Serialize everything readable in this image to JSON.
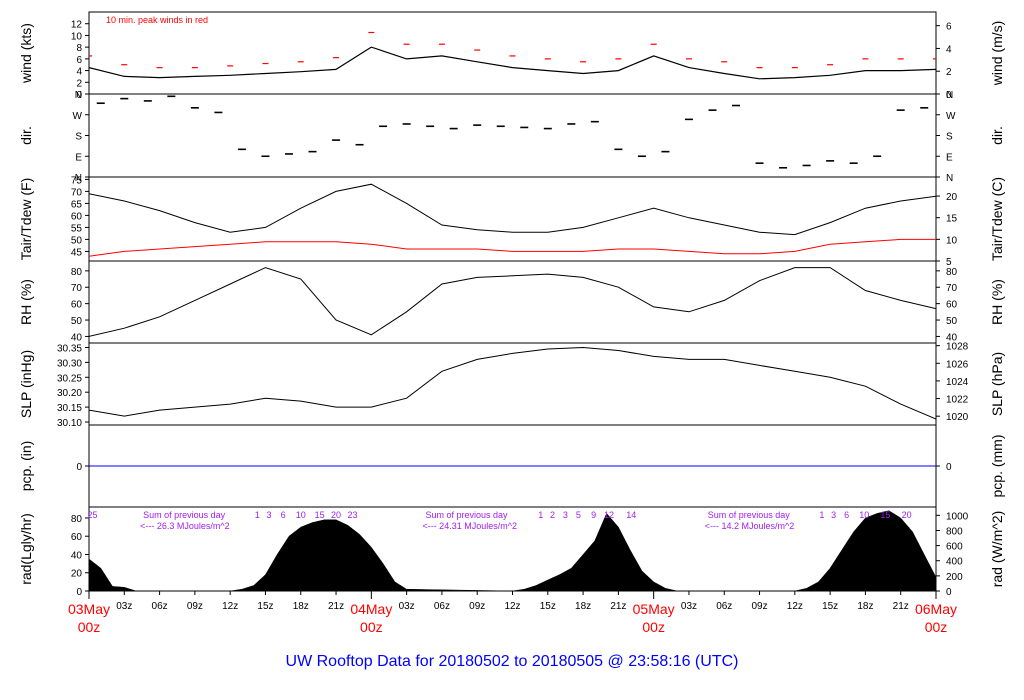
{
  "title": "UW Rooftop Data for 20180502  to  20180505 @ 23:58:16  (UTC)",
  "colors": {
    "wind_peak": "#ff0000",
    "tdew": "#ff0000",
    "pcp": "#0000ff",
    "annotation": "#a020f0",
    "title": "#0000ff",
    "date_label": "#ff0000",
    "line": "#000000"
  },
  "chart_data": [
    {
      "type": "line",
      "panel": "wind",
      "ylabel_left": "wind (kts)",
      "ylabel_right": "wind (m/s)",
      "yticks_left": [
        0,
        2,
        4,
        6,
        8,
        10,
        12
      ],
      "yticks_right": [
        0,
        2,
        4,
        6
      ],
      "annotation": "10 min. peak winds in red",
      "series": [
        {
          "name": "wind",
          "x": [
            0,
            3,
            6,
            9,
            12,
            15,
            18,
            21,
            24,
            27,
            30,
            33,
            36,
            39,
            42,
            45,
            48,
            51,
            54,
            57,
            60,
            63,
            66,
            69,
            72
          ],
          "y": [
            4.5,
            3.0,
            2.8,
            3.0,
            3.2,
            3.5,
            3.8,
            4.2,
            8.0,
            6.0,
            6.5,
            5.5,
            4.5,
            4.0,
            3.5,
            4.0,
            6.5,
            4.5,
            3.5,
            2.6,
            2.8,
            3.2,
            4.0,
            4.0,
            4.2
          ]
        },
        {
          "name": "peak",
          "x": [
            0,
            3,
            6,
            9,
            12,
            15,
            18,
            21,
            24,
            27,
            30,
            33,
            36,
            39,
            42,
            45,
            48,
            51,
            54,
            57,
            60,
            63,
            66,
            69,
            72
          ],
          "y": [
            6.5,
            5.0,
            4.5,
            4.5,
            4.8,
            5.2,
            5.5,
            6.2,
            10.5,
            8.5,
            8.5,
            7.5,
            6.5,
            6.0,
            5.5,
            6.0,
            8.5,
            6.0,
            5.5,
            4.5,
            4.5,
            5.0,
            6.0,
            6.0,
            6.0
          ]
        }
      ]
    },
    {
      "type": "scatter",
      "panel": "dir",
      "ylabel": "dir.",
      "ytick_labels": [
        "N",
        "E",
        "S",
        "W",
        "N"
      ],
      "series": [
        {
          "name": "direction",
          "x": [
            1,
            3,
            5,
            7,
            9,
            11,
            13,
            15,
            17,
            19,
            21,
            23,
            25,
            27,
            29,
            31,
            33,
            35,
            37,
            39,
            41,
            43,
            45,
            47,
            49,
            51,
            53,
            55,
            57,
            59,
            61,
            63,
            65,
            67,
            69,
            71
          ],
          "y": [
            320,
            340,
            330,
            350,
            300,
            280,
            120,
            90,
            100,
            110,
            160,
            140,
            220,
            230,
            220,
            210,
            225,
            220,
            215,
            210,
            230,
            240,
            120,
            90,
            110,
            250,
            290,
            310,
            60,
            40,
            50,
            70,
            60,
            90,
            290,
            300
          ]
        }
      ]
    },
    {
      "type": "line",
      "panel": "temp",
      "ylabel_left": "Tair/Tdew (F)",
      "ylabel_right": "Tair/Tdew (C)",
      "yticks_left": [
        45,
        50,
        55,
        60,
        65,
        70,
        75
      ],
      "yticks_right": [
        5,
        10,
        15,
        20
      ],
      "series": [
        {
          "name": "Tair",
          "x": [
            0,
            3,
            6,
            9,
            12,
            15,
            18,
            21,
            24,
            27,
            30,
            33,
            36,
            39,
            42,
            45,
            48,
            51,
            54,
            57,
            60,
            63,
            66,
            69,
            72
          ],
          "y": [
            69,
            66,
            62,
            57,
            53,
            55,
            63,
            70,
            73,
            65,
            56,
            54,
            53,
            53,
            55,
            59,
            63,
            59,
            56,
            53,
            52,
            57,
            63,
            66,
            68
          ]
        },
        {
          "name": "Tdew",
          "x": [
            0,
            3,
            6,
            9,
            12,
            15,
            18,
            21,
            24,
            27,
            30,
            33,
            36,
            39,
            42,
            45,
            48,
            51,
            54,
            57,
            60,
            63,
            66,
            69,
            72
          ],
          "y": [
            43,
            45,
            46,
            47,
            48,
            49,
            49,
            49,
            48,
            46,
            46,
            46,
            45,
            45,
            45,
            46,
            46,
            45,
            44,
            44,
            45,
            48,
            49,
            50,
            50
          ]
        }
      ]
    },
    {
      "type": "line",
      "panel": "rh",
      "ylabel_left": "RH (%)",
      "ylabel_right": "RH (%)",
      "yticks_left": [
        40,
        50,
        60,
        70,
        80
      ],
      "yticks_right": [
        40,
        50,
        60,
        70,
        80
      ],
      "series": [
        {
          "name": "RH",
          "x": [
            0,
            3,
            6,
            9,
            12,
            15,
            18,
            21,
            24,
            27,
            30,
            33,
            36,
            39,
            42,
            45,
            48,
            51,
            54,
            57,
            60,
            63,
            66,
            69,
            72
          ],
          "y": [
            40,
            45,
            52,
            62,
            72,
            82,
            75,
            50,
            41,
            55,
            72,
            76,
            77,
            78,
            76,
            70,
            58,
            55,
            62,
            74,
            82,
            82,
            68,
            62,
            57
          ]
        }
      ]
    },
    {
      "type": "line",
      "panel": "slp",
      "ylabel_left": "SLP (inHg)",
      "ylabel_right": "SLP (hPa)",
      "yticks_left": [
        30.1,
        30.15,
        30.2,
        30.25,
        30.3,
        30.35
      ],
      "yticks_right": [
        1020,
        1022,
        1024,
        1026,
        1028
      ],
      "ytick_labels_left": [
        "30.10",
        "30.15",
        "30.20",
        "30.25",
        "30.30",
        "30.35"
      ],
      "series": [
        {
          "name": "SLP",
          "x": [
            0,
            3,
            6,
            9,
            12,
            15,
            18,
            21,
            24,
            27,
            30,
            33,
            36,
            39,
            42,
            45,
            48,
            51,
            54,
            57,
            60,
            63,
            66,
            69,
            72
          ],
          "y": [
            30.14,
            30.12,
            30.14,
            30.15,
            30.16,
            30.18,
            30.17,
            30.15,
            30.15,
            30.18,
            30.27,
            30.31,
            30.33,
            30.345,
            30.35,
            30.34,
            30.32,
            30.31,
            30.31,
            30.29,
            30.27,
            30.25,
            30.22,
            30.16,
            30.11
          ]
        }
      ]
    },
    {
      "type": "line",
      "panel": "pcp",
      "ylabel_left": "pcp. (in)",
      "ylabel_right": "pcp. (mm)",
      "yticks_left": [
        0
      ],
      "yticks_right": [
        0
      ],
      "series": [
        {
          "name": "pcp",
          "x": [
            0,
            72
          ],
          "y": [
            0,
            0
          ]
        }
      ]
    },
    {
      "type": "area",
      "panel": "rad",
      "ylabel_left": "rad(Lgly/hr)",
      "ylabel_right": "rad (W/m^2)",
      "yticks_left": [
        0,
        20,
        40,
        60,
        80
      ],
      "yticks_right": [
        0,
        200,
        400,
        600,
        800,
        1000
      ],
      "series": [
        {
          "name": "radiation",
          "x": [
            0,
            1,
            2,
            3,
            4,
            5,
            12,
            13,
            14,
            15,
            16,
            17,
            18,
            19,
            20,
            21,
            22,
            23,
            24,
            25,
            26,
            27,
            36,
            37,
            38,
            39,
            40,
            41,
            42,
            43,
            44,
            45,
            46,
            47,
            48,
            49,
            50,
            51,
            60,
            61,
            62,
            63,
            64,
            65,
            66,
            67,
            68,
            69,
            70,
            71,
            72
          ],
          "y": [
            35,
            25,
            5,
            4,
            0,
            0,
            0,
            2,
            6,
            18,
            40,
            60,
            70,
            75,
            78,
            78,
            72,
            62,
            48,
            30,
            10,
            2,
            0,
            2,
            6,
            12,
            18,
            25,
            40,
            55,
            85,
            70,
            45,
            22,
            10,
            3,
            0,
            0,
            0,
            3,
            10,
            25,
            45,
            65,
            80,
            85,
            88,
            80,
            65,
            40,
            15
          ]
        }
      ],
      "hour_marks": [
        {
          "label": "25",
          "x": 0.3
        },
        {
          "label": "1",
          "x": 14.3
        },
        {
          "label": "3",
          "x": 15.3
        },
        {
          "label": "6",
          "x": 16.5
        },
        {
          "label": "10",
          "x": 18.0
        },
        {
          "label": "15",
          "x": 19.6
        },
        {
          "label": "20",
          "x": 21.0
        },
        {
          "label": "23",
          "x": 22.4
        },
        {
          "label": "1",
          "x": 38.4
        },
        {
          "label": "2",
          "x": 39.4
        },
        {
          "label": "3",
          "x": 40.5
        },
        {
          "label": "5",
          "x": 41.6
        },
        {
          "label": "9",
          "x": 42.9
        },
        {
          "label": "12",
          "x": 44.2
        },
        {
          "label": "14",
          "x": 46.1
        },
        {
          "label": "1",
          "x": 62.3
        },
        {
          "label": "3",
          "x": 63.3
        },
        {
          "label": "6",
          "x": 64.4
        },
        {
          "label": "10",
          "x": 65.9
        },
        {
          "label": "15",
          "x": 67.7
        },
        {
          "label": "20",
          "x": 69.5
        }
      ],
      "sum_annotations": [
        {
          "line1": "Sum of previous day",
          "line2": "<--- 26.3 MJoules/m^2",
          "x": 4.6
        },
        {
          "line1": "Sum of previous day",
          "line2": "<--- 24.31 MJoules/m^2",
          "x": 28.6
        },
        {
          "line1": "Sum of previous day",
          "line2": "<--- 14.2 MJoules/m^2",
          "x": 52.6
        }
      ]
    }
  ],
  "time_axis": {
    "ticks": [
      {
        "x": 3,
        "label": "03z"
      },
      {
        "x": 6,
        "label": "06z"
      },
      {
        "x": 9,
        "label": "09z"
      },
      {
        "x": 12,
        "label": "12z"
      },
      {
        "x": 15,
        "label": "15z"
      },
      {
        "x": 18,
        "label": "18z"
      },
      {
        "x": 21,
        "label": "21z"
      },
      {
        "x": 27,
        "label": "03z"
      },
      {
        "x": 30,
        "label": "06z"
      },
      {
        "x": 33,
        "label": "09z"
      },
      {
        "x": 36,
        "label": "12z"
      },
      {
        "x": 39,
        "label": "15z"
      },
      {
        "x": 42,
        "label": "18z"
      },
      {
        "x": 45,
        "label": "21z"
      },
      {
        "x": 51,
        "label": "03z"
      },
      {
        "x": 54,
        "label": "06z"
      },
      {
        "x": 57,
        "label": "09z"
      },
      {
        "x": 60,
        "label": "12z"
      },
      {
        "x": 63,
        "label": "15z"
      },
      {
        "x": 66,
        "label": "18z"
      },
      {
        "x": 69,
        "label": "21z"
      }
    ],
    "day_labels": [
      {
        "x": 0,
        "date": "03May",
        "hour": "00z"
      },
      {
        "x": 24,
        "date": "04May",
        "hour": "00z"
      },
      {
        "x": 48,
        "date": "05May",
        "hour": "00z"
      },
      {
        "x": 72,
        "date": "06May",
        "hour": "00z"
      }
    ]
  }
}
